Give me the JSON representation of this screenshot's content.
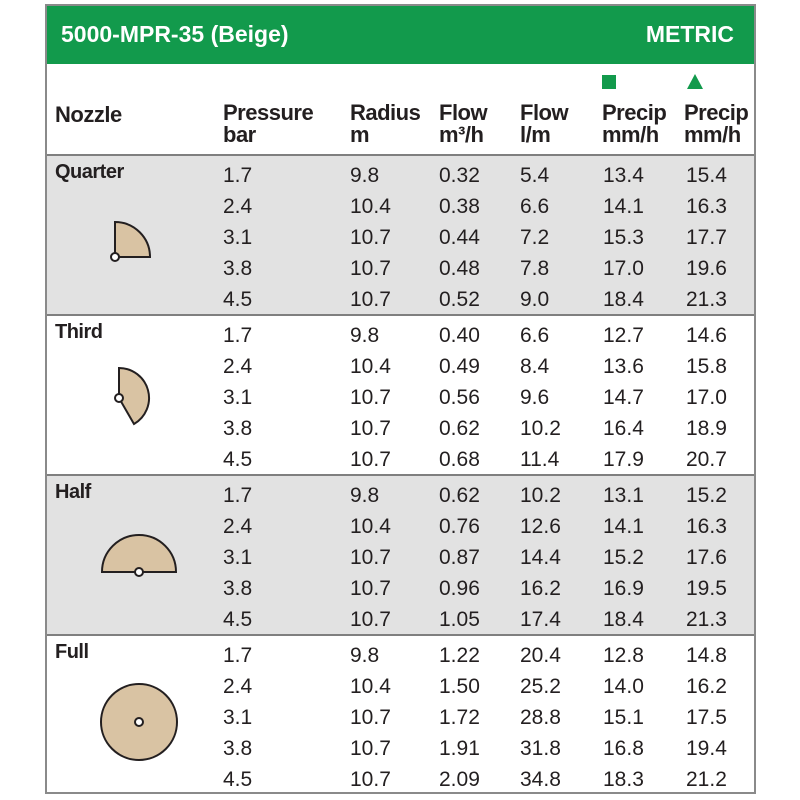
{
  "title": "5000-MPR-35 (Beige)",
  "unit_system": "METRIC",
  "headers": {
    "nozzle": "Nozzle",
    "pressure": [
      "Pressure",
      "bar"
    ],
    "radius": [
      "Radius",
      "m"
    ],
    "flow_m3h": [
      "Flow",
      "m³/h"
    ],
    "flow_lm": [
      "Flow",
      "l/m"
    ],
    "precip_square": [
      "Precip",
      "mm/h"
    ],
    "precip_triangle": [
      "Precip",
      "mm/h"
    ]
  },
  "colors": {
    "header_green": "#129a4c",
    "shading": "#e2e2e2",
    "arc_fill": "#d9c3a3"
  },
  "groups": [
    {
      "name": "Quarter",
      "icon": "quarter-arc-icon",
      "rows": [
        [
          "1.7",
          "9.8",
          "0.32",
          "5.4",
          "13.4",
          "15.4"
        ],
        [
          "2.4",
          "10.4",
          "0.38",
          "6.6",
          "14.1",
          "16.3"
        ],
        [
          "3.1",
          "10.7",
          "0.44",
          "7.2",
          "15.3",
          "17.7"
        ],
        [
          "3.8",
          "10.7",
          "0.48",
          "7.8",
          "17.0",
          "19.6"
        ],
        [
          "4.5",
          "10.7",
          "0.52",
          "9.0",
          "18.4",
          "21.3"
        ]
      ]
    },
    {
      "name": "Third",
      "icon": "third-arc-icon",
      "rows": [
        [
          "1.7",
          "9.8",
          "0.40",
          "6.6",
          "12.7",
          "14.6"
        ],
        [
          "2.4",
          "10.4",
          "0.49",
          "8.4",
          "13.6",
          "15.8"
        ],
        [
          "3.1",
          "10.7",
          "0.56",
          "9.6",
          "14.7",
          "17.0"
        ],
        [
          "3.8",
          "10.7",
          "0.62",
          "10.2",
          "16.4",
          "18.9"
        ],
        [
          "4.5",
          "10.7",
          "0.68",
          "11.4",
          "17.9",
          "20.7"
        ]
      ]
    },
    {
      "name": "Half",
      "icon": "half-arc-icon",
      "rows": [
        [
          "1.7",
          "9.8",
          "0.62",
          "10.2",
          "13.1",
          "15.2"
        ],
        [
          "2.4",
          "10.4",
          "0.76",
          "12.6",
          "14.1",
          "16.3"
        ],
        [
          "3.1",
          "10.7",
          "0.87",
          "14.4",
          "15.2",
          "17.6"
        ],
        [
          "3.8",
          "10.7",
          "0.96",
          "16.2",
          "16.9",
          "19.5"
        ],
        [
          "4.5",
          "10.7",
          "1.05",
          "17.4",
          "18.4",
          "21.3"
        ]
      ]
    },
    {
      "name": "Full",
      "icon": "full-circle-icon",
      "rows": [
        [
          "1.7",
          "9.8",
          "1.22",
          "20.4",
          "12.8",
          "14.8"
        ],
        [
          "2.4",
          "10.4",
          "1.50",
          "25.2",
          "14.0",
          "16.2"
        ],
        [
          "3.1",
          "10.7",
          "1.72",
          "28.8",
          "15.1",
          "17.5"
        ],
        [
          "3.8",
          "10.7",
          "1.91",
          "31.8",
          "16.8",
          "19.4"
        ],
        [
          "4.5",
          "10.7",
          "2.09",
          "34.8",
          "18.3",
          "21.2"
        ]
      ]
    }
  ]
}
